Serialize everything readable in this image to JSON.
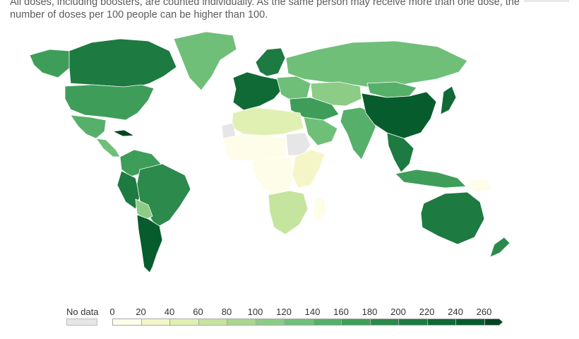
{
  "subtitle": {
    "line1": "All doses, including boosters, are counted individually. As the same person may receive more than one dose, the",
    "line2": "number of doses per 100 people can be higher than 100."
  },
  "legend": {
    "no_data_label": "No data",
    "no_data_color": "#e6e6e6",
    "ticks": [
      "0",
      "20",
      "40",
      "60",
      "80",
      "100",
      "120",
      "140",
      "160",
      "180",
      "200",
      "220",
      "240",
      "260"
    ],
    "bin_colors": [
      "#fefde9",
      "#f4f6c8",
      "#dff0b2",
      "#c5e49e",
      "#a8d68f",
      "#8ccc86",
      "#6fbf79",
      "#56b06a",
      "#3e9e59",
      "#2b8a4c",
      "#1d7a41",
      "#0f6a35",
      "#075c2d",
      "#034522"
    ]
  },
  "map": {
    "regions": [
      {
        "name": "greenland",
        "bin": 6
      },
      {
        "name": "canada",
        "bin": 10
      },
      {
        "name": "alaska",
        "bin": 8
      },
      {
        "name": "usa",
        "bin": 8
      },
      {
        "name": "mexico",
        "bin": 7
      },
      {
        "name": "central-america",
        "bin": 6
      },
      {
        "name": "cuba",
        "bin": 13
      },
      {
        "name": "colombia-venezuela",
        "bin": 8
      },
      {
        "name": "brazil",
        "bin": 9
      },
      {
        "name": "peru",
        "bin": 10
      },
      {
        "name": "bolivia",
        "bin": 5
      },
      {
        "name": "chile-argentina",
        "bin": 12
      },
      {
        "name": "russia",
        "bin": 6
      },
      {
        "name": "europe-west",
        "bin": 11
      },
      {
        "name": "scandinavia",
        "bin": 10
      },
      {
        "name": "eastern-europe",
        "bin": 6
      },
      {
        "name": "central-asia",
        "bin": 5
      },
      {
        "name": "middle-east",
        "bin": 8
      },
      {
        "name": "arabia",
        "bin": 6
      },
      {
        "name": "north-africa",
        "bin": 2
      },
      {
        "name": "sahel-africa",
        "bin": 0
      },
      {
        "name": "central-africa",
        "bin": 0
      },
      {
        "name": "east-africa",
        "bin": 1
      },
      {
        "name": "southern-africa",
        "bin": 3
      },
      {
        "name": "india",
        "bin": 7
      },
      {
        "name": "china",
        "bin": 12
      },
      {
        "name": "mongolia",
        "bin": 7
      },
      {
        "name": "southeast-asia",
        "bin": 10
      },
      {
        "name": "indonesia",
        "bin": 8
      },
      {
        "name": "japan",
        "bin": 11
      },
      {
        "name": "australia",
        "bin": 10
      },
      {
        "name": "new-zealand",
        "bin": 9
      },
      {
        "name": "madagascar",
        "bin": 0
      },
      {
        "name": "png",
        "bin": 0
      },
      {
        "name": "western-sahara",
        "bin": -1
      },
      {
        "name": "sudan-ethiopia-nodata",
        "bin": -1
      }
    ]
  }
}
